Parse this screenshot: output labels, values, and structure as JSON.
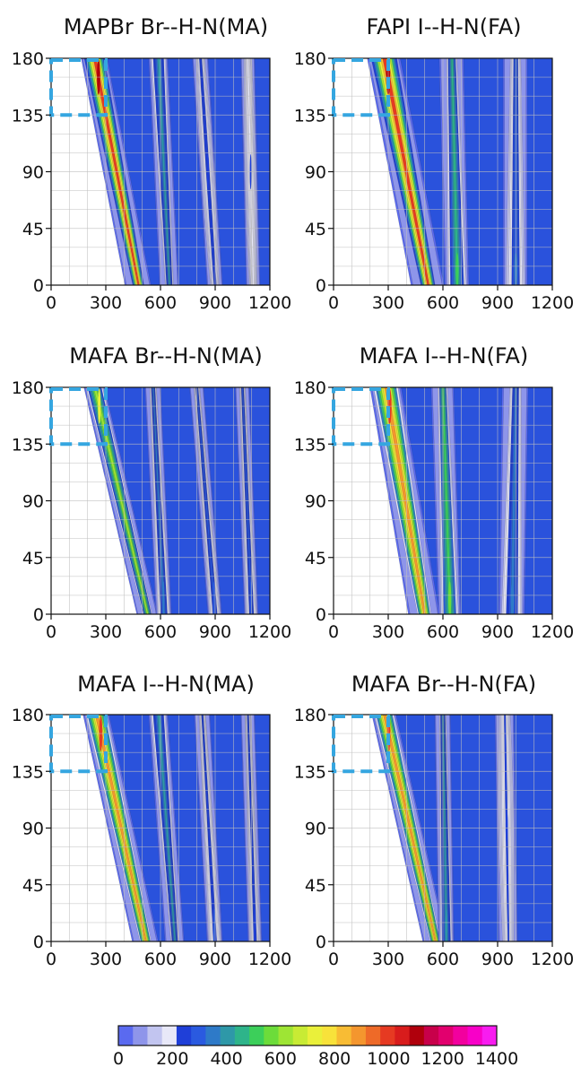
{
  "figure": {
    "colorbar": {
      "ticks": [
        "0",
        "200",
        "400",
        "600",
        "800",
        "1000",
        "1200",
        "1400"
      ],
      "colors": [
        "#5a6af0",
        "#8e95ea",
        "#c2c5f0",
        "#e8e8f8",
        "#1f3fd8",
        "#2a5ae0",
        "#2e7ac8",
        "#2e98a8",
        "#2eb48a",
        "#3ccf5a",
        "#6cdc3a",
        "#9ee534",
        "#c8eb34",
        "#eaf03a",
        "#f8e23a",
        "#f8bc34",
        "#f4962e",
        "#ee6a28",
        "#e63a22",
        "#d81c1c",
        "#b0000c",
        "#c8004a",
        "#e2006e",
        "#f2009e",
        "#f800c8",
        "#f81cf0"
      ]
    }
  },
  "chart_data": [
    {
      "type": "heatmap",
      "title": "MAPBr  Br--H-N(MA)",
      "xlim": [
        0,
        1200
      ],
      "ylim": [
        0,
        180
      ],
      "xticks": [
        "0",
        "300",
        "600",
        "900",
        "1200"
      ],
      "yticks": [
        "0",
        "45",
        "90",
        "135",
        "180"
      ],
      "grid": true,
      "highlight_box": {
        "x": [
          0,
          300
        ],
        "y": [
          135,
          180
        ]
      },
      "bands": [
        {
          "y0_x": 480,
          "y180_x": 240,
          "width": 75,
          "peak": 1100,
          "peak_region": "top"
        },
        {
          "y0_x": 650,
          "y180_x": 590,
          "width": 55,
          "peak": 420,
          "peak_region": "top"
        },
        {
          "y0_x": 900,
          "y180_x": 820,
          "width": 45,
          "peak": 260,
          "peak_region": "mid"
        },
        {
          "y0_x": 1110,
          "y180_x": 1080,
          "width": 40,
          "peak": 230,
          "peak_region": "mid"
        }
      ]
    },
    {
      "type": "heatmap",
      "title": "FAPI  I--H-N(FA)",
      "xlim": [
        0,
        1200
      ],
      "ylim": [
        0,
        180
      ],
      "xticks": [
        "0",
        "300",
        "600",
        "900",
        "1200"
      ],
      "yticks": [
        "0",
        "45",
        "90",
        "135",
        "180"
      ],
      "grid": true,
      "highlight_box": {
        "x": [
          0,
          300
        ],
        "y": [
          135,
          180
        ]
      },
      "bands": [
        {
          "y0_x": 520,
          "y180_x": 280,
          "width": 95,
          "peak": 1100,
          "peak_region": "top"
        },
        {
          "y0_x": 680,
          "y180_x": 650,
          "width": 70,
          "peak": 520,
          "peak_region": "bottom"
        },
        {
          "y0_x": 1000,
          "y180_x": 1000,
          "width": 70,
          "peak": 330,
          "peak_region": "bottom"
        }
      ]
    },
    {
      "type": "heatmap",
      "title": "MAFA  Br--H-N(MA)",
      "xlim": [
        0,
        1200
      ],
      "ylim": [
        0,
        180
      ],
      "xticks": [
        "0",
        "300",
        "600",
        "900",
        "1200"
      ],
      "yticks": [
        "0",
        "45",
        "90",
        "135",
        "180"
      ],
      "grid": true,
      "highlight_box": {
        "x": [
          0,
          300
        ],
        "y": [
          135,
          180
        ]
      },
      "bands": [
        {
          "y0_x": 530,
          "y180_x": 240,
          "width": 60,
          "peak": 700,
          "peak_region": "top"
        },
        {
          "y0_x": 620,
          "y180_x": 560,
          "width": 45,
          "peak": 360,
          "peak_region": "bottom"
        },
        {
          "y0_x": 900,
          "y180_x": 800,
          "width": 40,
          "peak": 320,
          "peak_region": "bottom"
        },
        {
          "y0_x": 1100,
          "y180_x": 1050,
          "width": 40,
          "peak": 300,
          "peak_region": "bottom"
        }
      ]
    },
    {
      "type": "heatmap",
      "title": "MAFA I--H-N(FA)",
      "xlim": [
        0,
        1200
      ],
      "ylim": [
        0,
        180
      ],
      "xticks": [
        "0",
        "300",
        "600",
        "900",
        "1200"
      ],
      "yticks": [
        "0",
        "45",
        "90",
        "135",
        "180"
      ],
      "grid": true,
      "highlight_box": {
        "x": [
          0,
          300
        ],
        "y": [
          135,
          180
        ]
      },
      "bands": [
        {
          "y0_x": 500,
          "y180_x": 290,
          "width": 90,
          "peak": 1000,
          "peak_region": "top"
        },
        {
          "y0_x": 640,
          "y180_x": 600,
          "width": 65,
          "peak": 560,
          "peak_region": "bottom"
        },
        {
          "y0_x": 980,
          "y180_x": 1000,
          "width": 75,
          "peak": 360,
          "peak_region": "bottom"
        }
      ]
    },
    {
      "type": "heatmap",
      "title": "MAFA  I--H-N(MA)",
      "xlim": [
        0,
        1200
      ],
      "ylim": [
        0,
        180
      ],
      "xticks": [
        "0",
        "300",
        "600",
        "900",
        "1200"
      ],
      "yticks": [
        "0",
        "45",
        "90",
        "135",
        "180"
      ],
      "grid": true,
      "highlight_box": {
        "x": [
          0,
          300
        ],
        "y": [
          135,
          180
        ]
      },
      "bands": [
        {
          "y0_x": 520,
          "y180_x": 250,
          "width": 75,
          "peak": 1000,
          "peak_region": "top"
        },
        {
          "y0_x": 680,
          "y180_x": 590,
          "width": 55,
          "peak": 420,
          "peak_region": "top"
        },
        {
          "y0_x": 900,
          "y180_x": 830,
          "width": 45,
          "peak": 280,
          "peak_region": "bottom"
        },
        {
          "y0_x": 1120,
          "y180_x": 1080,
          "width": 40,
          "peak": 260,
          "peak_region": "bottom"
        }
      ]
    },
    {
      "type": "heatmap",
      "title": "MAFA Br--H-N(FA)",
      "xlim": [
        0,
        1200
      ],
      "ylim": [
        0,
        180
      ],
      "xticks": [
        "0",
        "300",
        "600",
        "900",
        "1200"
      ],
      "yticks": [
        "0",
        "45",
        "90",
        "135",
        "180"
      ],
      "grid": true,
      "highlight_box": {
        "x": [
          0,
          300
        ],
        "y": [
          135,
          180
        ]
      },
      "bands": [
        {
          "y0_x": 560,
          "y180_x": 280,
          "width": 70,
          "peak": 1000,
          "peak_region": "top"
        },
        {
          "y0_x": 620,
          "y180_x": 600,
          "width": 45,
          "peak": 420,
          "peak_region": "bottom"
        },
        {
          "y0_x": 960,
          "y180_x": 940,
          "width": 55,
          "peak": 240,
          "peak_region": "mid"
        }
      ]
    }
  ]
}
